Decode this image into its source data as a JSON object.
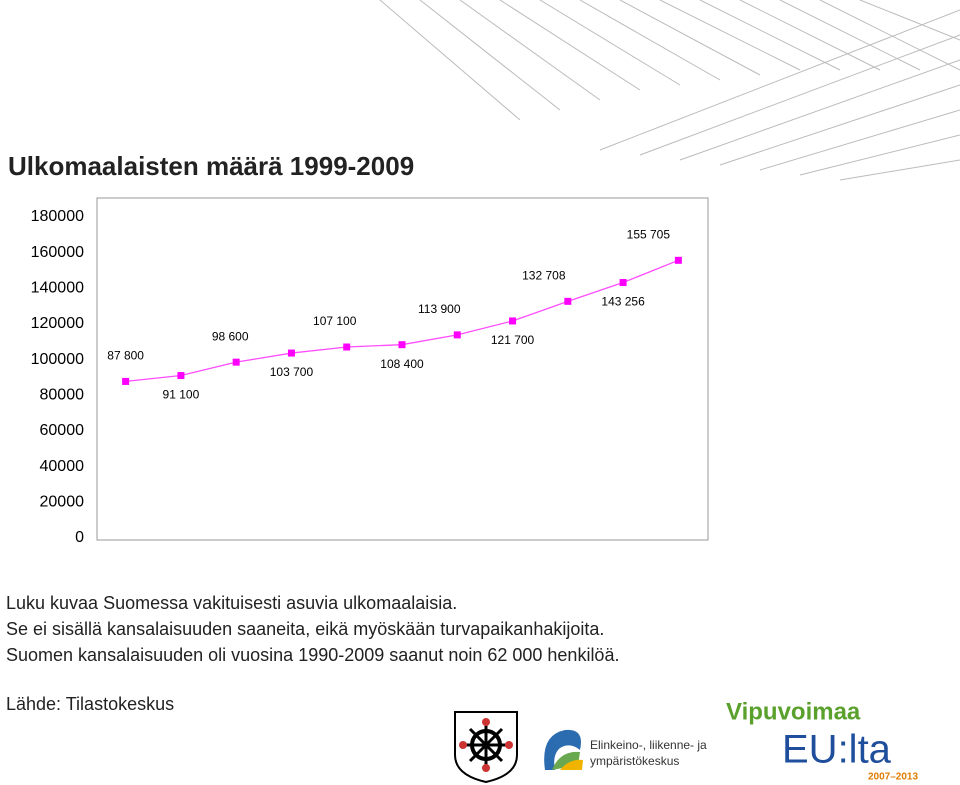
{
  "chart_data": {
    "type": "line",
    "title": "Ulkomaalaisten määrä 1999-2009",
    "values": [
      87800,
      91100,
      98600,
      103700,
      107100,
      108400,
      113900,
      121700,
      132708,
      143256,
      155705
    ],
    "value_labels": [
      "87 800",
      "91 100",
      "98 600",
      "103 700",
      "107 100",
      "108 400",
      "113 900",
      "121 700",
      "132 708",
      "143 256",
      "155 705"
    ],
    "color": "#ff00ff",
    "ylim": [
      0,
      180000
    ],
    "yticks": [
      0,
      20000,
      40000,
      60000,
      80000,
      100000,
      120000,
      140000,
      160000,
      180000
    ],
    "grid": false
  },
  "notes": [
    "Luku kuvaa Suomessa vakituisesti asuvia ulkomaalaisia.",
    "Se ei sisällä kansalaisuuden saaneita, eikä myöskään turvapaikanhakijoita.",
    "Suomen kansalaisuuden oli vuosina 1990-2009 saanut noin 62 000 henkilöä."
  ],
  "source": "Lähde: Tilastokeskus",
  "logos": {
    "ely": [
      "Elinkeino-, liikenne- ja",
      "ympäristökeskus"
    ],
    "eu": {
      "line1": "Vipuvoimaa",
      "line2": "EU:lta",
      "years": "2007–2013"
    }
  }
}
